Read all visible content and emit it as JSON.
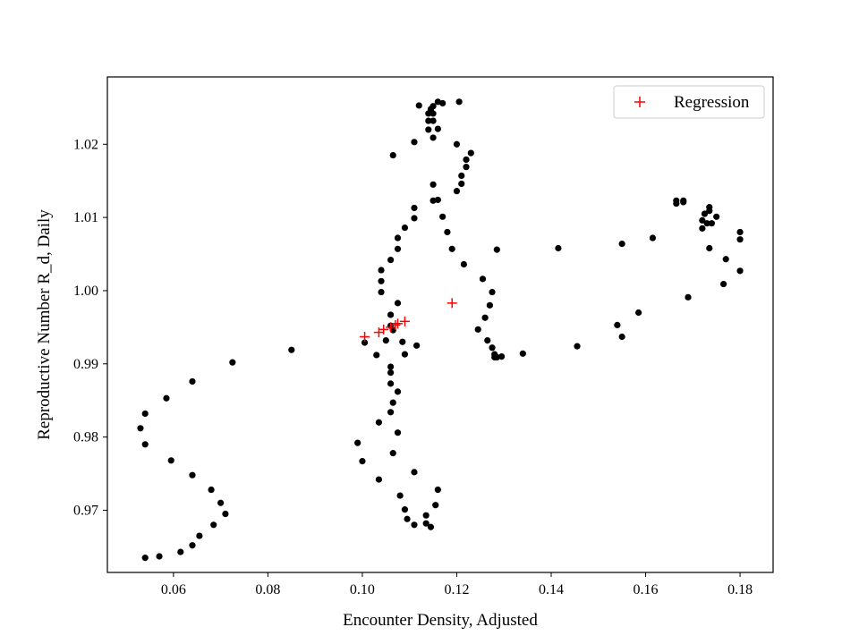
{
  "chart_data": {
    "type": "scatter",
    "xlabel": "Encounter Density, Adjusted",
    "ylabel": "Reproductive Number R_d, Daily",
    "xlim": [
      0.046,
      0.187
    ],
    "ylim": [
      0.9615,
      1.0292
    ],
    "xticks": [
      0.06,
      0.08,
      0.1,
      0.12,
      0.14,
      0.16,
      0.18
    ],
    "xtick_labels": [
      "0.06",
      "0.08",
      "0.10",
      "0.12",
      "0.14",
      "0.16",
      "0.18"
    ],
    "yticks": [
      0.97,
      0.98,
      0.99,
      1.0,
      1.01,
      1.02
    ],
    "ytick_labels": [
      "0.97",
      "0.98",
      "0.99",
      "1.00",
      "1.01",
      "1.02"
    ],
    "grid": false,
    "legend_position": "top-right",
    "colors": {
      "observed": "#000000",
      "regression": "#ff0000"
    },
    "series": [
      {
        "marker": "circle",
        "color": "#000000",
        "points": [
          [
            0.054,
            0.9635
          ],
          [
            0.057,
            0.9637
          ],
          [
            0.0615,
            0.9643
          ],
          [
            0.064,
            0.9652
          ],
          [
            0.0655,
            0.9665
          ],
          [
            0.0685,
            0.968
          ],
          [
            0.071,
            0.9695
          ],
          [
            0.07,
            0.971
          ],
          [
            0.068,
            0.9728
          ],
          [
            0.064,
            0.9748
          ],
          [
            0.0595,
            0.9768
          ],
          [
            0.054,
            0.979
          ],
          [
            0.053,
            0.9812
          ],
          [
            0.054,
            0.9832
          ],
          [
            0.0585,
            0.9853
          ],
          [
            0.064,
            0.9876
          ],
          [
            0.0725,
            0.9902
          ],
          [
            0.085,
            0.9919
          ],
          [
            0.1005,
            0.9929
          ],
          [
            0.103,
            0.9912
          ],
          [
            0.105,
            0.9932
          ],
          [
            0.106,
            0.9952
          ],
          [
            0.106,
            0.9967
          ],
          [
            0.1075,
            0.9983
          ],
          [
            0.104,
            0.9998
          ],
          [
            0.104,
            1.0013
          ],
          [
            0.104,
            1.0028
          ],
          [
            0.106,
            1.0042
          ],
          [
            0.1075,
            1.0057
          ],
          [
            0.1075,
            1.0072
          ],
          [
            0.109,
            1.0086
          ],
          [
            0.111,
            1.0099
          ],
          [
            0.111,
            1.0113
          ],
          [
            0.115,
            1.0123
          ],
          [
            0.116,
            1.0124
          ],
          [
            0.115,
            1.0145
          ],
          [
            0.1065,
            1.0185
          ],
          [
            0.111,
            1.0203
          ],
          [
            0.115,
            1.0209
          ],
          [
            0.114,
            1.022
          ],
          [
            0.116,
            1.0221
          ],
          [
            0.114,
            1.0232
          ],
          [
            0.115,
            1.0232
          ],
          [
            0.114,
            1.0242
          ],
          [
            0.115,
            1.0242
          ],
          [
            0.1145,
            1.0248
          ],
          [
            0.115,
            1.0252
          ],
          [
            0.112,
            1.0253
          ],
          [
            0.117,
            1.0256
          ],
          [
            0.116,
            1.0258
          ],
          [
            0.1205,
            1.0258
          ],
          [
            0.12,
            1.02
          ],
          [
            0.123,
            1.0188
          ],
          [
            0.122,
            1.0179
          ],
          [
            0.122,
            1.0169
          ],
          [
            0.121,
            1.0157
          ],
          [
            0.121,
            1.0146
          ],
          [
            0.12,
            1.0136
          ],
          [
            0.117,
            1.0101
          ],
          [
            0.118,
            1.008
          ],
          [
            0.119,
            1.0057
          ],
          [
            0.1215,
            1.0036
          ],
          [
            0.1255,
            1.0016
          ],
          [
            0.1275,
            0.9998
          ],
          [
            0.127,
            0.998
          ],
          [
            0.126,
            0.9963
          ],
          [
            0.1245,
            0.9947
          ],
          [
            0.1265,
            0.9932
          ],
          [
            0.1275,
            0.9922
          ],
          [
            0.128,
            0.9913
          ],
          [
            0.1285,
            0.9909
          ],
          [
            0.1295,
            0.991
          ],
          [
            0.128,
            0.9909
          ],
          [
            0.134,
            0.9914
          ],
          [
            0.1455,
            0.9924
          ],
          [
            0.155,
            0.9937
          ],
          [
            0.154,
            0.9953
          ],
          [
            0.1585,
            0.997
          ],
          [
            0.169,
            0.9991
          ],
          [
            0.1765,
            1.0009
          ],
          [
            0.18,
            1.0027
          ],
          [
            0.177,
            1.0043
          ],
          [
            0.1735,
            1.0058
          ],
          [
            0.18,
            1.007
          ],
          [
            0.18,
            1.008
          ],
          [
            0.172,
            1.0085
          ],
          [
            0.173,
            1.0092
          ],
          [
            0.174,
            1.0092
          ],
          [
            0.172,
            1.0096
          ],
          [
            0.175,
            1.0101
          ],
          [
            0.1725,
            1.0105
          ],
          [
            0.1735,
            1.0109
          ],
          [
            0.1735,
            1.0114
          ],
          [
            0.1665,
            1.0119
          ],
          [
            0.168,
            1.0121
          ],
          [
            0.1665,
            1.0123
          ],
          [
            0.168,
            1.0123
          ],
          [
            0.1615,
            1.0072
          ],
          [
            0.155,
            1.0064
          ],
          [
            0.1415,
            1.0058
          ],
          [
            0.1285,
            1.0056
          ],
          [
            0.1115,
            0.9925
          ],
          [
            0.109,
            0.9913
          ],
          [
            0.1085,
            0.993
          ],
          [
            0.1065,
            0.9946
          ],
          [
            0.106,
            0.9896
          ],
          [
            0.106,
            0.9888
          ],
          [
            0.106,
            0.9873
          ],
          [
            0.1075,
            0.9862
          ],
          [
            0.1065,
            0.9847
          ],
          [
            0.106,
            0.9834
          ],
          [
            0.1035,
            0.982
          ],
          [
            0.1075,
            0.9806
          ],
          [
            0.099,
            0.9792
          ],
          [
            0.1065,
            0.9778
          ],
          [
            0.1,
            0.9767
          ],
          [
            0.111,
            0.9752
          ],
          [
            0.1035,
            0.9742
          ],
          [
            0.116,
            0.9728
          ],
          [
            0.108,
            0.972
          ],
          [
            0.1155,
            0.9707
          ],
          [
            0.109,
            0.9701
          ],
          [
            0.1135,
            0.9693
          ],
          [
            0.1095,
            0.9688
          ],
          [
            0.111,
            0.968
          ],
          [
            0.1135,
            0.9682
          ],
          [
            0.1145,
            0.9677
          ]
        ]
      },
      {
        "name": "Regression",
        "marker": "plus",
        "color": "#ff0000",
        "points": [
          [
            0.1005,
            0.9937
          ],
          [
            0.1035,
            0.9943
          ],
          [
            0.1045,
            0.9947
          ],
          [
            0.106,
            0.995
          ],
          [
            0.107,
            0.9953
          ],
          [
            0.1075,
            0.9955
          ],
          [
            0.109,
            0.9958
          ],
          [
            0.119,
            0.9983
          ]
        ]
      }
    ]
  }
}
